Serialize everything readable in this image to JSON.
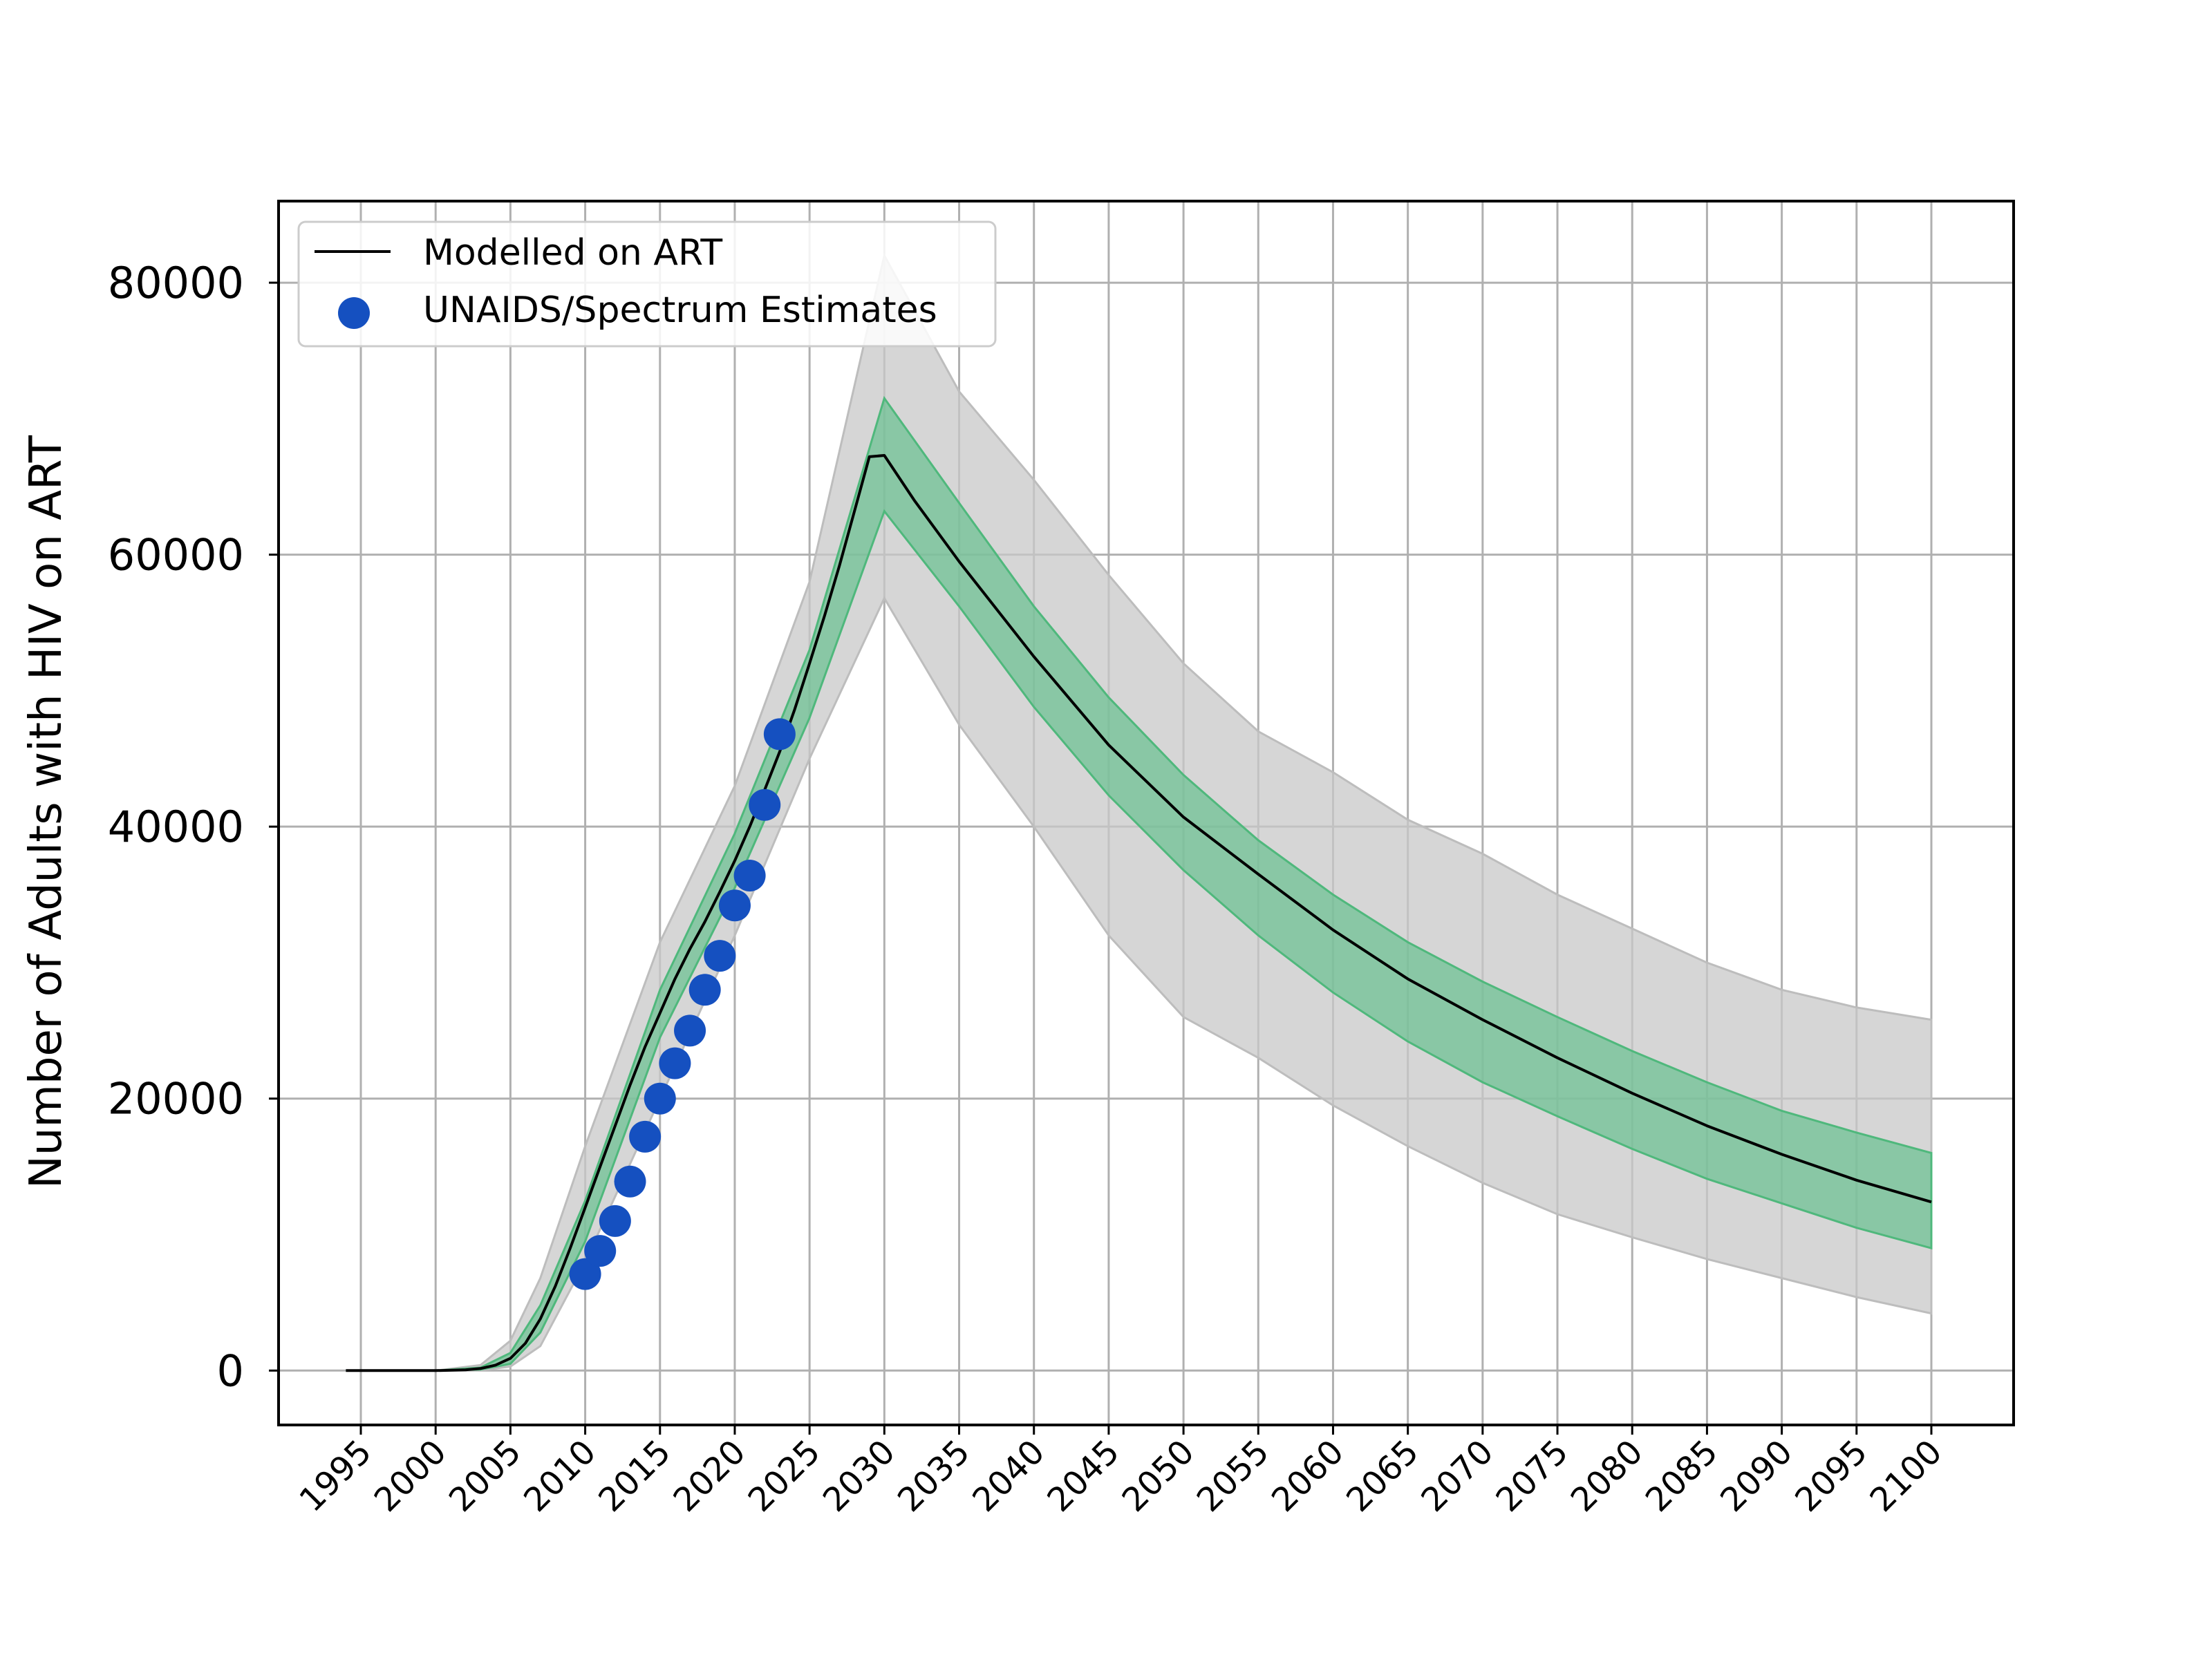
{
  "chart_data": {
    "type": "line",
    "title": "",
    "xlabel": "",
    "ylabel": "Number of Adults with HIV on ART",
    "xlim": [
      1989.5,
      2105.5
    ],
    "ylim": [
      -4000,
      86000
    ],
    "x_ticks": [
      1995,
      2000,
      2005,
      2010,
      2015,
      2020,
      2025,
      2030,
      2035,
      2040,
      2045,
      2050,
      2055,
      2060,
      2065,
      2070,
      2075,
      2080,
      2085,
      2090,
      2095,
      2100
    ],
    "y_ticks": [
      0,
      20000,
      40000,
      60000,
      80000
    ],
    "x_tick_labels": [
      "1995",
      "2000",
      "2005",
      "2010",
      "2015",
      "2020",
      "2025",
      "2030",
      "2035",
      "2040",
      "2045",
      "2050",
      "2055",
      "2060",
      "2065",
      "2070",
      "2075",
      "2080",
      "2085",
      "2090",
      "2095",
      "2100"
    ],
    "y_tick_labels": [
      "0",
      "20000",
      "40000",
      "60000",
      "80000"
    ],
    "grid": true,
    "legend_position": "upper-left",
    "legend": [
      {
        "label": "Modelled on ART",
        "marker": "line",
        "color": "#000000"
      },
      {
        "label": "UNAIDS/Spectrum Estimates",
        "marker": "circle",
        "color": "#1f4fbf"
      }
    ],
    "colors": {
      "model_line": "#000000",
      "inner_band": "#5fbf8a",
      "outer_band": "#c8c8c8",
      "estimates": "#1550c0"
    },
    "model_line": {
      "x": [
        1994,
        1996,
        1998,
        2000,
        2002,
        2003,
        2004,
        2005,
        2006,
        2007,
        2008,
        2009,
        2010,
        2011,
        2012,
        2013,
        2014,
        2015,
        2016,
        2017,
        2018,
        2019,
        2020,
        2021,
        2022,
        2023,
        2024,
        2025,
        2026,
        2027,
        2028,
        2029,
        2030,
        2032,
        2035,
        2040,
        2045,
        2050,
        2055,
        2060,
        2065,
        2070,
        2075,
        2080,
        2085,
        2090,
        2095,
        2100
      ],
      "y": [
        0,
        0,
        0,
        0,
        50,
        150,
        400,
        900,
        2000,
        3800,
        6200,
        9000,
        12000,
        15000,
        18000,
        21000,
        23800,
        26300,
        28800,
        31000,
        33000,
        35200,
        37500,
        40000,
        42700,
        45500,
        48600,
        52000,
        55500,
        59200,
        63200,
        67200,
        67300,
        64000,
        59500,
        52500,
        46000,
        40700,
        36500,
        32400,
        28800,
        25800,
        23000,
        20400,
        18000,
        15900,
        14000,
        12400
      ]
    },
    "inner_band": {
      "x": [
        1994,
        2000,
        2003,
        2005,
        2007,
        2010,
        2015,
        2020,
        2025,
        2030,
        2035,
        2040,
        2045,
        2050,
        2055,
        2060,
        2065,
        2070,
        2075,
        2080,
        2085,
        2090,
        2095,
        2100
      ],
      "lower": [
        0,
        0,
        80,
        500,
        2800,
        9500,
        24500,
        35500,
        48000,
        63200,
        56200,
        48800,
        42300,
        36800,
        32000,
        27800,
        24200,
        21200,
        18700,
        16300,
        14100,
        12300,
        10500,
        9000
      ],
      "upper": [
        0,
        0,
        220,
        1300,
        4800,
        12500,
        28000,
        39500,
        53000,
        71500,
        63800,
        56200,
        49500,
        43800,
        39000,
        35000,
        31500,
        28600,
        26000,
        23500,
        21200,
        19100,
        17500,
        16000
      ]
    },
    "outer_band": {
      "x": [
        1994,
        2000,
        2003,
        2005,
        2007,
        2010,
        2015,
        2020,
        2025,
        2030,
        2035,
        2040,
        2045,
        2050,
        2055,
        2060,
        2065,
        2070,
        2075,
        2080,
        2085,
        2090,
        2095,
        2100
      ],
      "lower": [
        0,
        0,
        20,
        300,
        1800,
        8000,
        20000,
        32000,
        45000,
        56800,
        47500,
        40000,
        32000,
        26000,
        23000,
        19500,
        16500,
        13800,
        11500,
        9800,
        8200,
        6800,
        5400,
        4200
      ],
      "upper": [
        0,
        0,
        400,
        2200,
        6800,
        16500,
        31500,
        43000,
        58000,
        82000,
        72000,
        65500,
        58500,
        52000,
        47000,
        44000,
        40500,
        38000,
        35000,
        32500,
        30000,
        28000,
        26700,
        25800
      ]
    },
    "estimates": {
      "x": [
        2010,
        2011,
        2012,
        2013,
        2014,
        2015,
        2016,
        2017,
        2018,
        2019,
        2020,
        2021,
        2022,
        2023
      ],
      "y": [
        7100,
        8800,
        11000,
        13900,
        17200,
        20000,
        22600,
        25000,
        28000,
        30500,
        34200,
        36400,
        41600,
        46800
      ]
    }
  }
}
